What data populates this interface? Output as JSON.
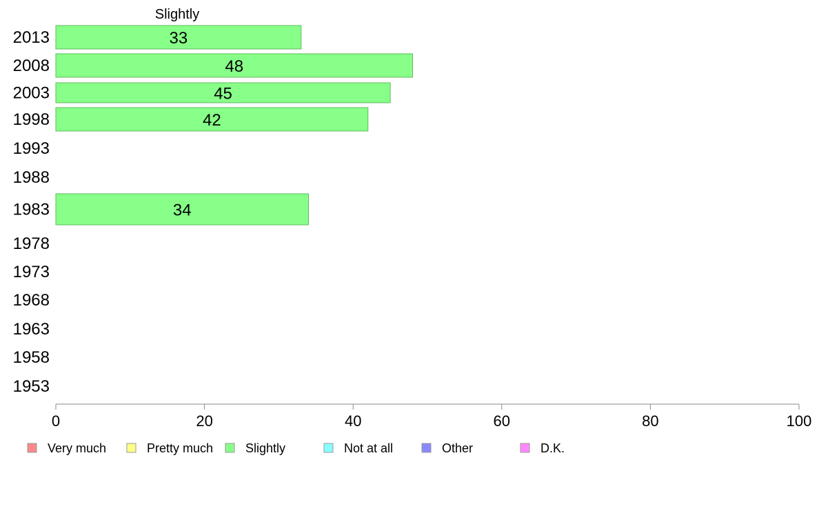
{
  "chart_data": {
    "type": "bar",
    "orientation": "horizontal",
    "title": "Slightly",
    "categories": [
      "2013",
      "2008",
      "2003",
      "1998",
      "1993",
      "1988",
      "1983",
      "1978",
      "1973",
      "1968",
      "1963",
      "1958",
      "1953"
    ],
    "series": [
      {
        "name": "Slightly",
        "color": "#88ff88",
        "values": [
          33,
          48,
          45,
          42,
          null,
          null,
          34,
          null,
          null,
          null,
          null,
          null,
          null
        ]
      }
    ],
    "xlim": [
      0,
      100
    ],
    "x_ticks": [
      "0",
      "20",
      "40",
      "60",
      "80",
      "100"
    ],
    "grid": false,
    "legend_position": "bottom",
    "legend": [
      {
        "label": "Very much",
        "color": "#ff8888"
      },
      {
        "label": "Pretty much",
        "color": "#ffff88"
      },
      {
        "label": "Slightly",
        "color": "#88ff88"
      },
      {
        "label": "Not at all",
        "color": "#88ffff"
      },
      {
        "label": "Other",
        "color": "#8888ff"
      },
      {
        "label": "D.K.",
        "color": "#ff88ff"
      }
    ]
  }
}
